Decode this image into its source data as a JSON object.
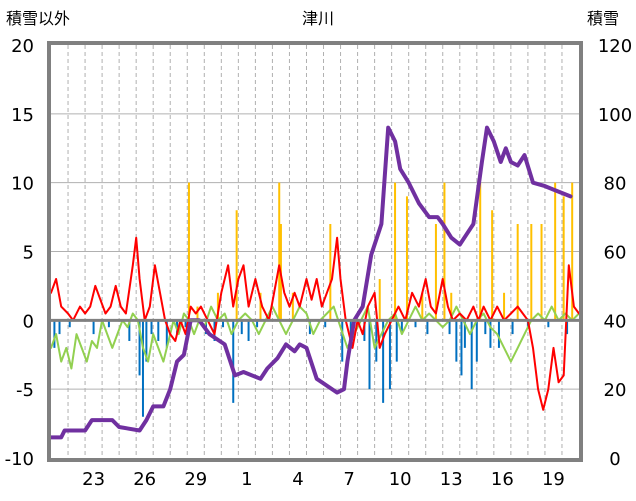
{
  "chart_data": {
    "type": "line",
    "title": "津川",
    "left_axis_label": "積雪以外",
    "right_axis_label": "積雪",
    "left_ylim": [
      -10,
      20
    ],
    "right_ylim": [
      0,
      120
    ],
    "left_ticks": [
      "20",
      "15",
      "10",
      "5",
      "0",
      "-5",
      "-10"
    ],
    "right_ticks": [
      "120",
      "100",
      "80",
      "60",
      "40",
      "20",
      "0"
    ],
    "x_ticks": [
      {
        "label": "23",
        "day": 2
      },
      {
        "label": "26",
        "day": 5
      },
      {
        "label": "29",
        "day": 8
      },
      {
        "label": "1",
        "day": 11
      },
      {
        "label": "4",
        "day": 14
      },
      {
        "label": "7",
        "day": 17
      },
      {
        "label": "10",
        "day": 20
      },
      {
        "label": "13",
        "day": 23
      },
      {
        "label": "16",
        "day": 26
      },
      {
        "label": "19",
        "day": 29
      }
    ],
    "x_range_days": [
      0,
      31
    ],
    "grid": "vertical dashed every day, horizontal every 5 units",
    "colors": {
      "snow_depth": "#7030a0",
      "temperature": "#ff0000",
      "temp_change": "#92d050",
      "snowfall": "#ffc000",
      "snow_change": "#0070c0",
      "frame": "#808080",
      "grid": "#b0b0b0"
    },
    "series": [
      {
        "key": "snow_depth",
        "axis": "right",
        "points": [
          [
            0,
            6
          ],
          [
            0.6,
            6
          ],
          [
            0.8,
            8
          ],
          [
            2,
            8
          ],
          [
            2.4,
            11
          ],
          [
            3.6,
            11
          ],
          [
            4,
            9
          ],
          [
            5.2,
            8
          ],
          [
            5.6,
            11
          ],
          [
            6,
            15
          ],
          [
            6.6,
            15
          ],
          [
            7,
            20
          ],
          [
            7.4,
            28
          ],
          [
            7.8,
            30
          ],
          [
            8.2,
            40
          ],
          [
            8.7,
            40
          ],
          [
            9.3,
            36
          ],
          [
            10.2,
            33
          ],
          [
            10.8,
            24
          ],
          [
            11.3,
            25
          ],
          [
            12.3,
            23
          ],
          [
            12.7,
            26
          ],
          [
            13.3,
            29
          ],
          [
            13.8,
            33
          ],
          [
            14.3,
            31
          ],
          [
            14.6,
            33
          ],
          [
            15,
            32
          ],
          [
            15.6,
            23
          ],
          [
            16.8,
            19
          ],
          [
            17.2,
            20
          ],
          [
            17.4,
            28
          ],
          [
            17.8,
            40
          ],
          [
            18.3,
            44
          ],
          [
            18.8,
            59
          ],
          [
            19.4,
            68
          ],
          [
            19.8,
            96
          ],
          [
            20.2,
            92
          ],
          [
            20.5,
            84
          ],
          [
            21,
            80
          ],
          [
            21.6,
            74
          ],
          [
            22.2,
            70
          ],
          [
            22.7,
            70
          ],
          [
            23,
            68
          ],
          [
            23.5,
            64
          ],
          [
            24,
            62
          ],
          [
            24.4,
            65
          ],
          [
            24.8,
            68
          ],
          [
            25.3,
            86
          ],
          [
            25.6,
            96
          ],
          [
            26,
            92
          ],
          [
            26.4,
            86
          ],
          [
            26.7,
            90
          ],
          [
            27,
            86
          ],
          [
            27.4,
            85
          ],
          [
            27.8,
            88
          ],
          [
            28.3,
            80
          ],
          [
            29,
            79
          ],
          [
            29.5,
            78
          ],
          [
            30,
            77
          ],
          [
            30.5,
            76
          ]
        ]
      },
      {
        "key": "temperature",
        "axis": "left",
        "points": [
          [
            0,
            2
          ],
          [
            0.3,
            3
          ],
          [
            0.6,
            1
          ],
          [
            1,
            0.5
          ],
          [
            1.3,
            0
          ],
          [
            1.7,
            1
          ],
          [
            2,
            0.5
          ],
          [
            2.3,
            1
          ],
          [
            2.6,
            2.5
          ],
          [
            2.9,
            1.5
          ],
          [
            3.2,
            0.5
          ],
          [
            3.5,
            1
          ],
          [
            3.8,
            2.5
          ],
          [
            4.1,
            1
          ],
          [
            4.4,
            0.5
          ],
          [
            4.8,
            4
          ],
          [
            5,
            6
          ],
          [
            5.2,
            3
          ],
          [
            5.5,
            0
          ],
          [
            5.8,
            1
          ],
          [
            6.1,
            4
          ],
          [
            6.4,
            2
          ],
          [
            6.7,
            0
          ],
          [
            7,
            -1
          ],
          [
            7.3,
            -1.5
          ],
          [
            7.6,
            0
          ],
          [
            7.9,
            -1
          ],
          [
            8.2,
            1
          ],
          [
            8.5,
            0.5
          ],
          [
            8.8,
            1
          ],
          [
            9.2,
            0
          ],
          [
            9.6,
            -1
          ],
          [
            10,
            2
          ],
          [
            10.4,
            4
          ],
          [
            10.7,
            1
          ],
          [
            11,
            3
          ],
          [
            11.3,
            4
          ],
          [
            11.6,
            1
          ],
          [
            12,
            3
          ],
          [
            12.4,
            1
          ],
          [
            12.8,
            0
          ],
          [
            13.1,
            2
          ],
          [
            13.4,
            4
          ],
          [
            13.7,
            2
          ],
          [
            14,
            1
          ],
          [
            14.3,
            2
          ],
          [
            14.6,
            1
          ],
          [
            15,
            3
          ],
          [
            15.3,
            1.5
          ],
          [
            15.6,
            3
          ],
          [
            15.9,
            1
          ],
          [
            16.2,
            2
          ],
          [
            16.5,
            3
          ],
          [
            16.8,
            6
          ],
          [
            17,
            3
          ],
          [
            17.3,
            0
          ],
          [
            17.7,
            -2
          ],
          [
            18,
            0
          ],
          [
            18.3,
            -1
          ],
          [
            18.6,
            1
          ],
          [
            19,
            2
          ],
          [
            19.3,
            -2
          ],
          [
            19.6,
            -1
          ],
          [
            20,
            0
          ],
          [
            20.4,
            1
          ],
          [
            20.8,
            0
          ],
          [
            21.2,
            2
          ],
          [
            21.6,
            1
          ],
          [
            22,
            3
          ],
          [
            22.3,
            1
          ],
          [
            22.6,
            0.5
          ],
          [
            23,
            3
          ],
          [
            23.3,
            1
          ],
          [
            23.6,
            0
          ],
          [
            24,
            0.5
          ],
          [
            24.4,
            0
          ],
          [
            24.8,
            1
          ],
          [
            25.1,
            0
          ],
          [
            25.4,
            1
          ],
          [
            25.8,
            0
          ],
          [
            26.2,
            1
          ],
          [
            26.6,
            0
          ],
          [
            27,
            0.5
          ],
          [
            27.4,
            1
          ],
          [
            27.7,
            0.5
          ],
          [
            28,
            0
          ],
          [
            28.3,
            -2
          ],
          [
            28.6,
            -5
          ],
          [
            28.9,
            -6.5
          ],
          [
            29.2,
            -5
          ],
          [
            29.5,
            -2
          ],
          [
            29.8,
            -4.5
          ],
          [
            30.1,
            -4
          ],
          [
            30.4,
            4
          ],
          [
            30.7,
            1
          ],
          [
            31,
            0.5
          ]
        ]
      },
      {
        "key": "temp_change",
        "axis": "left",
        "points": [
          [
            0,
            -2
          ],
          [
            0.3,
            -1
          ],
          [
            0.6,
            -3
          ],
          [
            0.9,
            -2
          ],
          [
            1.2,
            -3.5
          ],
          [
            1.5,
            -1
          ],
          [
            1.8,
            -2
          ],
          [
            2.1,
            -3
          ],
          [
            2.4,
            -1.5
          ],
          [
            2.7,
            -2
          ],
          [
            3,
            0
          ],
          [
            3.3,
            -1
          ],
          [
            3.6,
            -2
          ],
          [
            3.9,
            -1
          ],
          [
            4.2,
            0
          ],
          [
            4.5,
            -0.5
          ],
          [
            4.8,
            0.5
          ],
          [
            5.1,
            0
          ],
          [
            5.4,
            -2
          ],
          [
            5.7,
            -3
          ],
          [
            6,
            -1
          ],
          [
            6.3,
            -2
          ],
          [
            6.6,
            -3
          ],
          [
            6.9,
            -1.5
          ],
          [
            7.2,
            0
          ],
          [
            7.5,
            -1
          ],
          [
            7.8,
            0.5
          ],
          [
            8.1,
            0
          ],
          [
            8.4,
            -1
          ],
          [
            8.7,
            0
          ],
          [
            9,
            -0.5
          ],
          [
            9.4,
            1
          ],
          [
            9.8,
            0
          ],
          [
            10.2,
            0.5
          ],
          [
            10.6,
            -1
          ],
          [
            11,
            0
          ],
          [
            11.4,
            0.5
          ],
          [
            11.8,
            0
          ],
          [
            12.2,
            -1
          ],
          [
            12.6,
            0
          ],
          [
            13,
            1
          ],
          [
            13.4,
            0
          ],
          [
            13.8,
            -1
          ],
          [
            14.2,
            0
          ],
          [
            14.6,
            1
          ],
          [
            15,
            0.5
          ],
          [
            15.4,
            -1
          ],
          [
            15.8,
            0
          ],
          [
            16.2,
            0.5
          ],
          [
            16.6,
            1
          ],
          [
            17,
            -0.5
          ],
          [
            17.4,
            -2
          ],
          [
            17.8,
            -1
          ],
          [
            18.2,
            0
          ],
          [
            18.6,
            1
          ],
          [
            19,
            -2
          ],
          [
            19.4,
            -1
          ],
          [
            19.8,
            0
          ],
          [
            20.2,
            0.5
          ],
          [
            20.6,
            -1
          ],
          [
            21,
            0
          ],
          [
            21.4,
            1
          ],
          [
            21.8,
            0
          ],
          [
            22.2,
            0.5
          ],
          [
            22.6,
            0
          ],
          [
            23,
            -0.5
          ],
          [
            23.4,
            0
          ],
          [
            23.8,
            1
          ],
          [
            24.2,
            0
          ],
          [
            24.6,
            -1
          ],
          [
            25,
            0
          ],
          [
            25.4,
            0.5
          ],
          [
            25.8,
            -0.5
          ],
          [
            26.2,
            -1
          ],
          [
            26.6,
            -2
          ],
          [
            27,
            -3
          ],
          [
            27.4,
            -2
          ],
          [
            27.8,
            -1
          ],
          [
            28.2,
            0
          ],
          [
            28.6,
            0.5
          ],
          [
            29,
            0
          ],
          [
            29.4,
            1
          ],
          [
            29.8,
            0
          ],
          [
            30.2,
            0.5
          ],
          [
            30.6,
            0
          ],
          [
            31,
            0.5
          ]
        ]
      },
      {
        "key": "snowfall",
        "axis": "left",
        "bars": [
          [
            8.1,
            10
          ],
          [
            8.6,
            1
          ],
          [
            9.8,
            2
          ],
          [
            10.9,
            8
          ],
          [
            12.3,
            2
          ],
          [
            13.4,
            10
          ],
          [
            13.5,
            7
          ],
          [
            14.2,
            2
          ],
          [
            16.4,
            7
          ],
          [
            19.3,
            3
          ],
          [
            20.2,
            10
          ],
          [
            20.9,
            9
          ],
          [
            21.8,
            2
          ],
          [
            22.6,
            7
          ],
          [
            23.1,
            10
          ],
          [
            23.5,
            2
          ],
          [
            25.2,
            10
          ],
          [
            25.9,
            8
          ],
          [
            26.6,
            2
          ],
          [
            27.4,
            7
          ],
          [
            28.2,
            7
          ],
          [
            28.8,
            7
          ],
          [
            29.6,
            10
          ],
          [
            30.1,
            9
          ],
          [
            30.6,
            10
          ]
        ]
      },
      {
        "key": "snow_change",
        "axis": "left",
        "bars": [
          [
            0.2,
            -2
          ],
          [
            0.5,
            -1
          ],
          [
            1.1,
            -0.5
          ],
          [
            2.5,
            -1
          ],
          [
            3.4,
            -0.5
          ],
          [
            4.6,
            -1.5
          ],
          [
            5.2,
            -4
          ],
          [
            5.4,
            -7
          ],
          [
            5.6,
            -3
          ],
          [
            5.9,
            -1
          ],
          [
            6.3,
            -1.5
          ],
          [
            6.8,
            -2
          ],
          [
            7.4,
            -1
          ],
          [
            7.9,
            -0.5
          ],
          [
            9.1,
            -1
          ],
          [
            9.6,
            -1.5
          ],
          [
            10.1,
            -0.5
          ],
          [
            10.7,
            -6
          ],
          [
            11.2,
            -1
          ],
          [
            11.6,
            -1.5
          ],
          [
            12.1,
            -0.5
          ],
          [
            15.2,
            -1
          ],
          [
            16.1,
            -0.5
          ],
          [
            17.1,
            -3
          ],
          [
            17.6,
            -2
          ],
          [
            18.4,
            -1.5
          ],
          [
            18.7,
            -5
          ],
          [
            19.1,
            -3
          ],
          [
            19.5,
            -6
          ],
          [
            19.9,
            -5
          ],
          [
            20.3,
            -3
          ],
          [
            20.6,
            -1
          ],
          [
            21.4,
            -0.5
          ],
          [
            22.1,
            -1
          ],
          [
            23.4,
            -1
          ],
          [
            23.8,
            -3
          ],
          [
            24.1,
            -4
          ],
          [
            24.3,
            -2
          ],
          [
            24.7,
            -5
          ],
          [
            25,
            -3
          ],
          [
            25.5,
            -1
          ],
          [
            25.8,
            -2
          ],
          [
            26.3,
            -2
          ],
          [
            27.1,
            -1
          ],
          [
            28,
            -0.5
          ],
          [
            29.2,
            -0.5
          ],
          [
            30.3,
            -1
          ]
        ]
      }
    ]
  }
}
